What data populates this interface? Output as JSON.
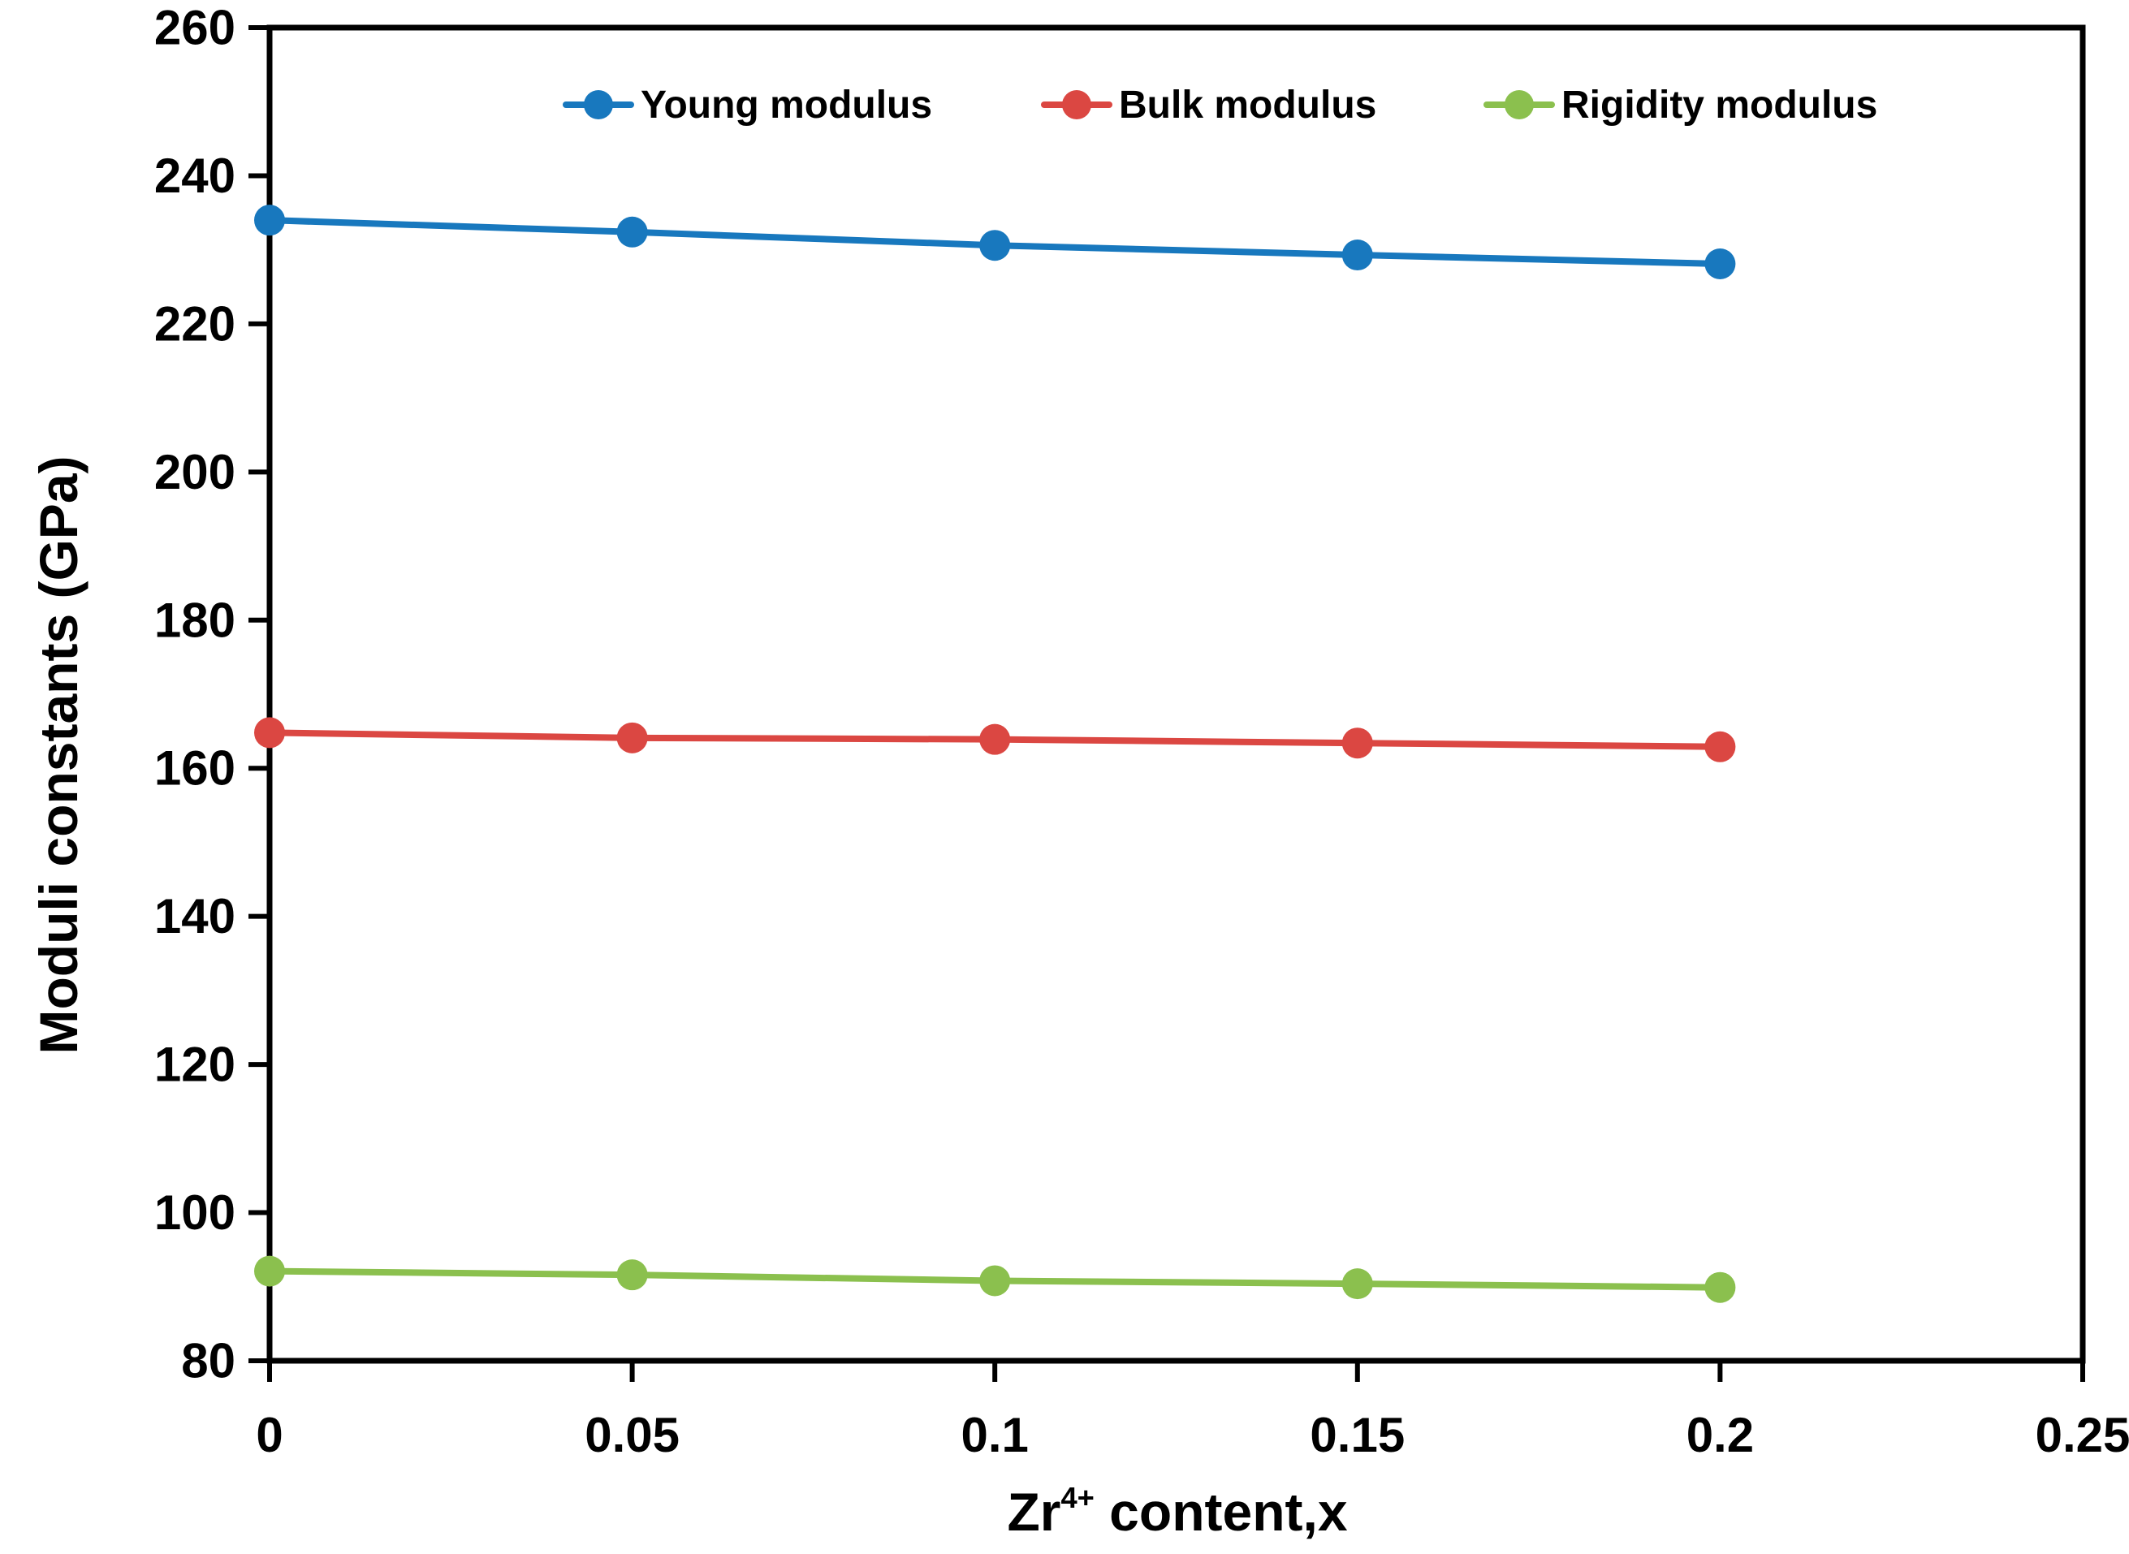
{
  "page": {
    "background": "#ffffff",
    "text_color": "#000000"
  },
  "chart_data": {
    "type": "line",
    "title": "",
    "x": [
      0,
      0.05,
      0.1,
      0.15,
      0.2
    ],
    "series": [
      {
        "name": "Young modulus",
        "color": "#1878BE",
        "values": [
          234.0,
          232.4,
          230.6,
          229.3,
          228.1
        ]
      },
      {
        "name": "Bulk modulus",
        "color": "#DB4742",
        "values": [
          164.8,
          164.1,
          163.9,
          163.4,
          162.9
        ]
      },
      {
        "name": "Rigidity modulus",
        "color": "#8BC04E",
        "values": [
          92.1,
          91.6,
          90.8,
          90.4,
          89.9
        ]
      }
    ],
    "xlabel": {
      "base": "Zr",
      "superscript": "4+",
      "rest": " content,x"
    },
    "ylabel": "Moduli constants (GPa)",
    "xlim": [
      0,
      0.25
    ],
    "ylim": [
      80,
      260
    ],
    "xticks": {
      "values": [
        0,
        0.05,
        0.1,
        0.15,
        0.2,
        0.25
      ],
      "labels": [
        "0",
        "0.05",
        "0.1",
        "0.15",
        "0.2",
        "0.25"
      ]
    },
    "yticks": {
      "values": [
        80,
        100,
        120,
        140,
        160,
        180,
        200,
        220,
        240,
        260
      ],
      "labels": [
        "80",
        "100",
        "120",
        "140",
        "160",
        "180",
        "200",
        "220",
        "240",
        "260"
      ]
    },
    "grid": false,
    "legend_position": "top-inside",
    "axis_color": "#000000",
    "marker": "circle"
  }
}
